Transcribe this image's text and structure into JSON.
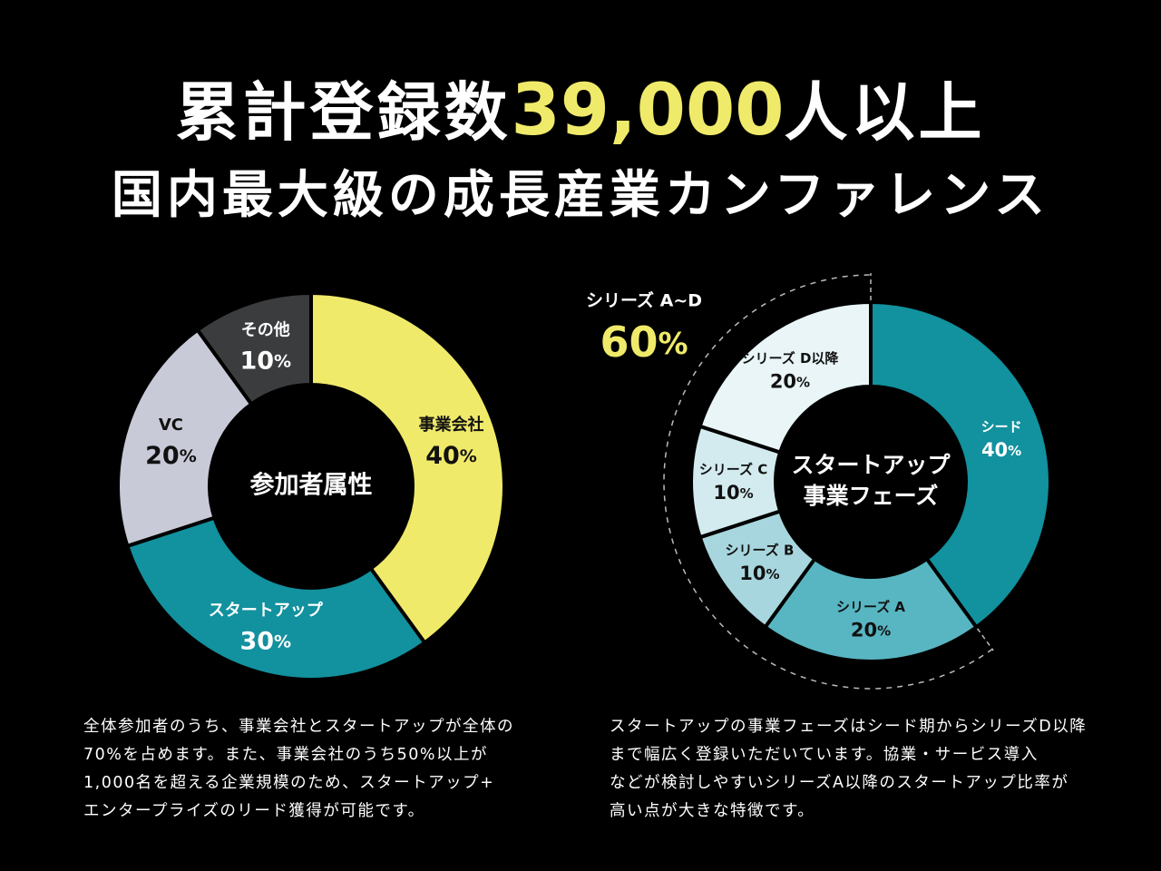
{
  "headline": {
    "prefix": "累計登録数",
    "number": "39,000",
    "suffix": "人以上"
  },
  "subheadline": "国内最大級の成長産業カンファレンス",
  "colors": {
    "yellow": "#f0ea6a",
    "teal": "#12919e",
    "lavender": "#c9cad8",
    "darkgray": "#3b3c3e"
  },
  "chart_data": [
    {
      "type": "pie",
      "title": "参加者属性",
      "slices": [
        {
          "label": "事業会社",
          "value": 40,
          "display": "40%",
          "color": "#f0ea6a",
          "text_color": "#111111"
        },
        {
          "label": "スタートアップ",
          "value": 30,
          "display": "30%",
          "color": "#12919e",
          "text_color": "#ffffff"
        },
        {
          "label": "VC",
          "value": 20,
          "display": "20%",
          "color": "#c9cad8",
          "text_color": "#111111"
        },
        {
          "label": "その他",
          "value": 10,
          "display": "10%",
          "color": "#3b3c3e",
          "text_color": "#ffffff"
        }
      ]
    },
    {
      "type": "pie",
      "title": "スタートアップ事業フェーズ",
      "title_lines": [
        "スタートアップ",
        "事業フェーズ"
      ],
      "slices": [
        {
          "label": "シード",
          "value": 40,
          "display": "40%",
          "color": "#12919e",
          "text_color": "#ffffff"
        },
        {
          "label": "シリーズ A",
          "value": 20,
          "display": "20%",
          "color": "#58b6c2",
          "text_color": "#111111"
        },
        {
          "label": "シリーズ B",
          "value": 10,
          "display": "10%",
          "color": "#a8d6de",
          "text_color": "#111111"
        },
        {
          "label": "シリーズ C",
          "value": 10,
          "display": "10%",
          "color": "#d3ebef",
          "text_color": "#111111"
        },
        {
          "label": "シリーズ D以降",
          "value": 20,
          "display": "20%",
          "color": "#e9f5f7",
          "text_color": "#111111"
        }
      ],
      "group_annotation": {
        "label": "シリーズ A~D",
        "value": "60%"
      }
    }
  ],
  "captions": {
    "left": [
      "全体参加者のうち、事業会社とスタートアップが全体の",
      "70%を占めます。また、事業会社のうち50%以上が",
      "1,000名を超える企業規模のため、スタートアップ+",
      "エンタープライズのリード獲得が可能です。"
    ],
    "right": [
      "スタートアップの事業フェーズはシード期からシリーズD以降",
      "まで幅広く登録いただいています。協業・サービス導入",
      "などが検討しやすいシリーズA以降のスタートアップ比率が",
      "高い点が大きな特徴です。"
    ]
  }
}
